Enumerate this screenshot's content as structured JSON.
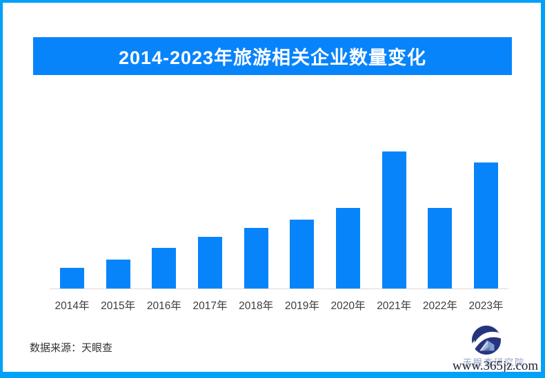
{
  "frame": {
    "border_color": "#00a1f8",
    "background": "#ffffff"
  },
  "title_banner": {
    "text": "2014-2023年旅游相关企业数量变化",
    "bg_color": "#0884fb",
    "text_color": "#ffffff"
  },
  "chart_data": {
    "type": "bar",
    "title": "2014-2023年旅游相关企业数量变化",
    "categories": [
      "2014年",
      "2015年",
      "2016年",
      "2017年",
      "2018年",
      "2019年",
      "2020年",
      "2021年",
      "2022年",
      "2023年"
    ],
    "values": [
      30,
      42,
      59,
      75,
      88,
      100,
      117,
      199,
      117,
      183
    ],
    "xlabel": "",
    "ylabel": "",
    "ylim": [
      0,
      210
    ],
    "value_axis_labeled": false,
    "data_labels_shown": false,
    "grid": false,
    "legend": "none",
    "bar_color": "#0884fb",
    "axis_line_color": "#dadada",
    "tick_label_color": "#3c3c3c"
  },
  "footer": {
    "source_text": "数据来源：天眼查"
  },
  "logo": {
    "label": "天眼查研究院",
    "watermark": "www.365jz.com",
    "dark_blue": "#27357e",
    "light_blue": "#7f9fd2",
    "label_color": "#93a3c4"
  }
}
